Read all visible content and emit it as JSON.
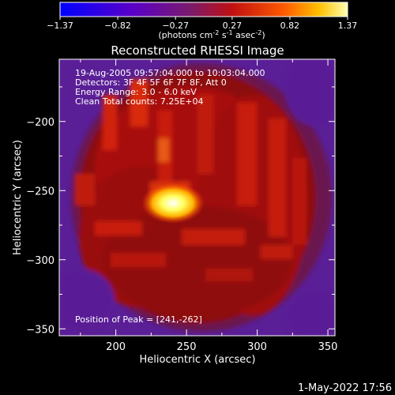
{
  "chart_data": {
    "type": "heatmap",
    "title": "Reconstructed RHESSI Image",
    "xlabel": "Heliocentric X (arcsec)",
    "ylabel": "Heliocentric Y (arcsec)",
    "xlim": [
      160,
      355
    ],
    "ylim": [
      -355,
      -155
    ],
    "x_ticks": [
      200,
      250,
      300,
      350
    ],
    "y_ticks": [
      -200,
      -250,
      -300,
      -350
    ],
    "colorbar": {
      "range": [
        -1.37,
        1.37
      ],
      "ticks": [
        "-1.37",
        "-0.82",
        "-0.27",
        "0.27",
        "0.82",
        "1.37"
      ],
      "label_main": "(photons cm",
      "label_exp1": "-2",
      "label_mid1": " s",
      "label_exp2": "-1",
      "label_mid2": " asec",
      "label_exp3": "-2",
      "label_end": ")"
    },
    "annotation": {
      "time": "19-Aug-2005 09:57:04.000 to 10:03:04.000",
      "detectors": "Detectors: 3F 4F 5F 6F 7F 8F, Att 0",
      "energy": "Energy Range: 3.0 - 6.0 keV",
      "clean": "Clean     Total counts: 7.25E+04",
      "peak": "Position of Peak = [241,-262]"
    },
    "peak": [
      241,
      -262
    ],
    "footer_date": "1-May-2022 17:56"
  }
}
